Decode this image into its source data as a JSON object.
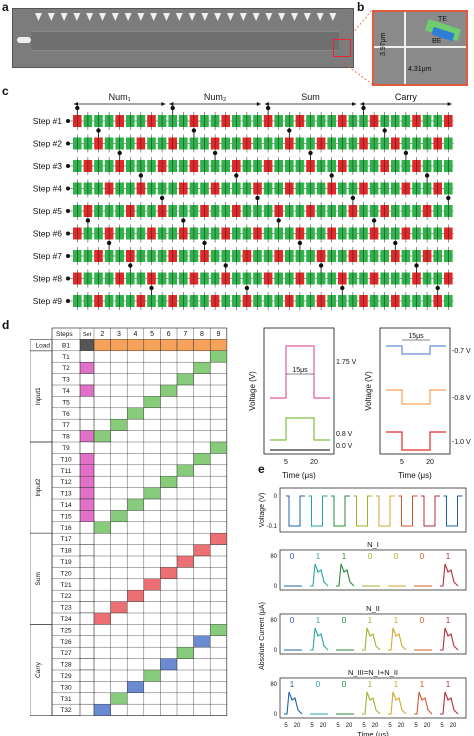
{
  "panels": {
    "a": "a",
    "b": "b",
    "c": "c",
    "d": "d",
    "e": "e"
  },
  "panel_b": {
    "te": "TE",
    "be": "BE",
    "dim_v": "3.97μm",
    "dim_h": "4.31μm"
  },
  "panel_c": {
    "groups": [
      "Num₁",
      "Num₂",
      "Sum",
      "Carry"
    ],
    "steps": [
      "Step #1",
      "Step #2",
      "Step #3",
      "Step #4",
      "Step #5",
      "Step #6",
      "Step #7",
      "Step #8",
      "Step #9"
    ]
  },
  "panel_d": {
    "header_steps": "Steps",
    "header_set": "Set",
    "columns": [
      "2",
      "3",
      "4",
      "5",
      "6",
      "7",
      "8",
      "9"
    ],
    "load_label": "Load",
    "group_labels": [
      "Input1",
      "Input2",
      "Sum",
      "Carry"
    ],
    "rows": [
      "B1",
      "T1",
      "T2",
      "T3",
      "T4",
      "T5",
      "T6",
      "T7",
      "T8",
      "T9",
      "T10",
      "T11",
      "T12",
      "T13",
      "T14",
      "T15",
      "T16",
      "T17",
      "T18",
      "T19",
      "T20",
      "T21",
      "T22",
      "T23",
      "T24",
      "T25",
      "T26",
      "T27",
      "T28",
      "T29",
      "T30",
      "T31",
      "T32"
    ]
  },
  "waveforms": {
    "left": {
      "ylabel": "Voltage (V)",
      "xlabel": "Time (μs)",
      "pulse_width": "15μs",
      "levels": [
        "1.75 V",
        "0.8 V",
        "0.0 V"
      ],
      "ticks": [
        "5",
        "20"
      ]
    },
    "right": {
      "ylabel": "Voltage (V)",
      "xlabel": "Time (μs)",
      "pulse_width": "15μs",
      "levels": [
        "-0.7 V",
        "-0.8 V",
        "-1.0 V"
      ],
      "ticks": [
        "5",
        "20"
      ]
    }
  },
  "panel_e": {
    "voltage_ylabel": "Voltage (V)",
    "voltage_ticks": [
      "0",
      "-0.1"
    ],
    "current_ylabel": "Absolute Current (μA)",
    "xlabel": "Time (μs)",
    "x_ticks": [
      "5",
      "20"
    ],
    "current_ticks": [
      "80",
      "0"
    ],
    "row_labels": [
      "N_I",
      "N_II",
      "N_III=N_I+N_II"
    ],
    "bits": [
      [
        "0",
        "1",
        "1",
        "0",
        "0",
        "0",
        "1"
      ],
      [
        "0",
        "1",
        "0",
        "1",
        "1",
        "0",
        "1"
      ],
      [
        "1",
        "0",
        "0",
        "1",
        "1",
        "1",
        "1"
      ]
    ]
  },
  "colors": {
    "green": "#2fb34a",
    "red": "#e02a2a",
    "orange": "#f5a25a",
    "purple": "#e070c8",
    "blue": "#6a8ad2",
    "pink": "#ec6f74",
    "green_light": "#86cc7a"
  }
}
